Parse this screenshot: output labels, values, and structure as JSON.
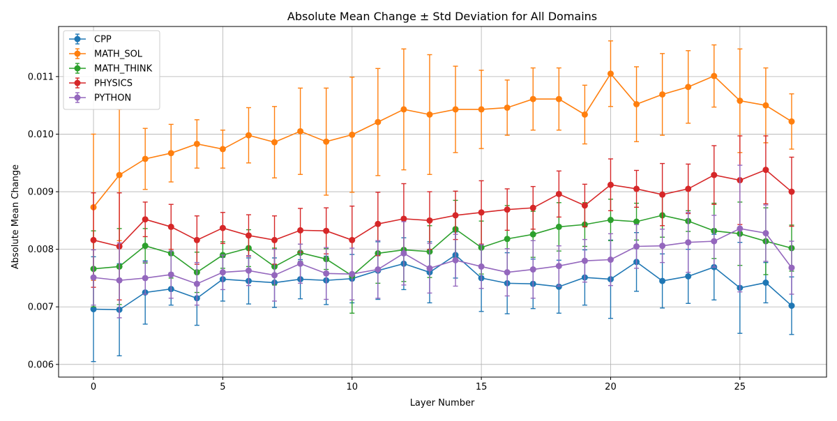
{
  "chart_data": {
    "type": "line",
    "title": "Absolute Mean Change ± Std Deviation for All Domains",
    "xlabel": "Layer Number",
    "ylabel": "Absolute Mean Change",
    "xlim": [
      -1.35,
      28.35
    ],
    "ylim": [
      0.00578,
      0.01187
    ],
    "xticks": [
      0,
      5,
      10,
      15,
      20,
      25
    ],
    "xtick_labels": [
      "0",
      "5",
      "10",
      "15",
      "20",
      "25"
    ],
    "yticks": [
      0.006,
      0.007,
      0.008,
      0.009,
      0.01,
      0.011
    ],
    "ytick_labels": [
      "0.006",
      "0.007",
      "0.008",
      "0.009",
      "0.010",
      "0.011"
    ],
    "grid": true,
    "legend_position": "top-left",
    "x": [
      0,
      1,
      2,
      3,
      4,
      5,
      6,
      7,
      8,
      9,
      10,
      11,
      12,
      13,
      14,
      15,
      16,
      17,
      18,
      19,
      20,
      21,
      22,
      23,
      24,
      25,
      26,
      27
    ],
    "series": [
      {
        "name": "CPP",
        "color": "#1f77b4",
        "values": [
          0.00696,
          0.00695,
          0.00725,
          0.00731,
          0.00715,
          0.00748,
          0.00745,
          0.00742,
          0.00748,
          0.00746,
          0.00749,
          0.00763,
          0.00775,
          0.0076,
          0.0079,
          0.0075,
          0.00741,
          0.0074,
          0.00735,
          0.00751,
          0.00748,
          0.00778,
          0.00745,
          0.00753,
          0.00769,
          0.00733,
          0.00742,
          0.00702
        ],
        "errors": [
          0.00091,
          0.0008,
          0.00055,
          0.00028,
          0.00047,
          0.00038,
          0.0004,
          0.00043,
          0.00034,
          0.00042,
          0.00042,
          0.0005,
          0.00045,
          0.00053,
          0.0004,
          0.00058,
          0.00053,
          0.00043,
          0.00046,
          0.00048,
          0.00068,
          0.00051,
          0.00047,
          0.00047,
          0.00057,
          0.00079,
          0.00035,
          0.0005
        ]
      },
      {
        "name": "MATH_SOL",
        "color": "#ff7f0e",
        "values": [
          0.00873,
          0.00929,
          0.00957,
          0.00967,
          0.00983,
          0.00974,
          0.00998,
          0.00986,
          0.01005,
          0.00987,
          0.00999,
          0.01021,
          0.01043,
          0.01034,
          0.01043,
          0.01043,
          0.01046,
          0.01061,
          0.01061,
          0.01034,
          0.01105,
          0.01052,
          0.01069,
          0.01082,
          0.01101,
          0.01058,
          0.0105,
          0.01022
        ],
        "errors": [
          0.00127,
          0.00114,
          0.00053,
          0.0005,
          0.00042,
          0.00033,
          0.00048,
          0.00062,
          0.00075,
          0.00093,
          0.001,
          0.00093,
          0.00105,
          0.00104,
          0.00075,
          0.00068,
          0.00048,
          0.00054,
          0.00054,
          0.00051,
          0.00057,
          0.00065,
          0.00071,
          0.00063,
          0.00054,
          0.0009,
          0.00065,
          0.00048
        ]
      },
      {
        "name": "MATH_THINK",
        "color": "#2ca02c",
        "values": [
          0.00766,
          0.0077,
          0.00806,
          0.00793,
          0.0076,
          0.0079,
          0.00802,
          0.0077,
          0.00794,
          0.00783,
          0.00754,
          0.00793,
          0.00799,
          0.00796,
          0.00835,
          0.00803,
          0.00818,
          0.00826,
          0.00839,
          0.00843,
          0.00851,
          0.00848,
          0.00859,
          0.00849,
          0.00832,
          0.00827,
          0.00814,
          0.00802
        ],
        "errors": [
          0.00066,
          0.00066,
          0.0003,
          0.00043,
          0.00035,
          0.00023,
          0.00032,
          0.00032,
          0.00015,
          0.00018,
          0.00065,
          0.00052,
          0.00055,
          0.00045,
          0.0005,
          0.00046,
          0.00058,
          0.0004,
          0.00042,
          0.00038,
          0.00036,
          0.00032,
          0.00038,
          0.00018,
          0.00048,
          0.00055,
          0.00058,
          0.0004
        ]
      },
      {
        "name": "PHYSICS",
        "color": "#d62728",
        "values": [
          0.00816,
          0.00805,
          0.00852,
          0.00839,
          0.00816,
          0.00837,
          0.00824,
          0.00816,
          0.00833,
          0.00832,
          0.00816,
          0.00844,
          0.00853,
          0.0085,
          0.00859,
          0.00864,
          0.00869,
          0.00872,
          0.00896,
          0.00876,
          0.00912,
          0.00905,
          0.00895,
          0.00905,
          0.00929,
          0.0092,
          0.00938,
          0.009
        ],
        "errors": [
          0.00082,
          0.00093,
          0.0003,
          0.00039,
          0.00042,
          0.00027,
          0.00036,
          0.00042,
          0.00038,
          0.0004,
          0.00059,
          0.00055,
          0.00061,
          0.0005,
          0.00042,
          0.00055,
          0.00036,
          0.00037,
          0.0004,
          0.00037,
          0.00045,
          0.00032,
          0.00054,
          0.00043,
          0.00051,
          0.00077,
          0.00059,
          0.0006
        ]
      },
      {
        "name": "PYTHON",
        "color": "#9467bd",
        "values": [
          0.00751,
          0.00746,
          0.0075,
          0.00756,
          0.0074,
          0.0076,
          0.00763,
          0.00755,
          0.00775,
          0.00758,
          0.00757,
          0.00765,
          0.00793,
          0.00767,
          0.00781,
          0.0077,
          0.0076,
          0.00765,
          0.00771,
          0.0078,
          0.00782,
          0.00805,
          0.00806,
          0.00812,
          0.00814,
          0.00836,
          0.00828,
          0.00768
        ],
        "errors": [
          0.00048,
          0.00065,
          0.00028,
          0.00041,
          0.00037,
          0.0003,
          0.00026,
          0.00045,
          0.00034,
          0.00045,
          0.00045,
          0.0005,
          0.00055,
          0.00043,
          0.00045,
          0.00038,
          0.00041,
          0.0005,
          0.00035,
          0.00037,
          0.00045,
          0.00038,
          0.00029,
          0.00052,
          0.00045,
          0.0011,
          0.00049,
          0.00046
        ]
      }
    ]
  }
}
